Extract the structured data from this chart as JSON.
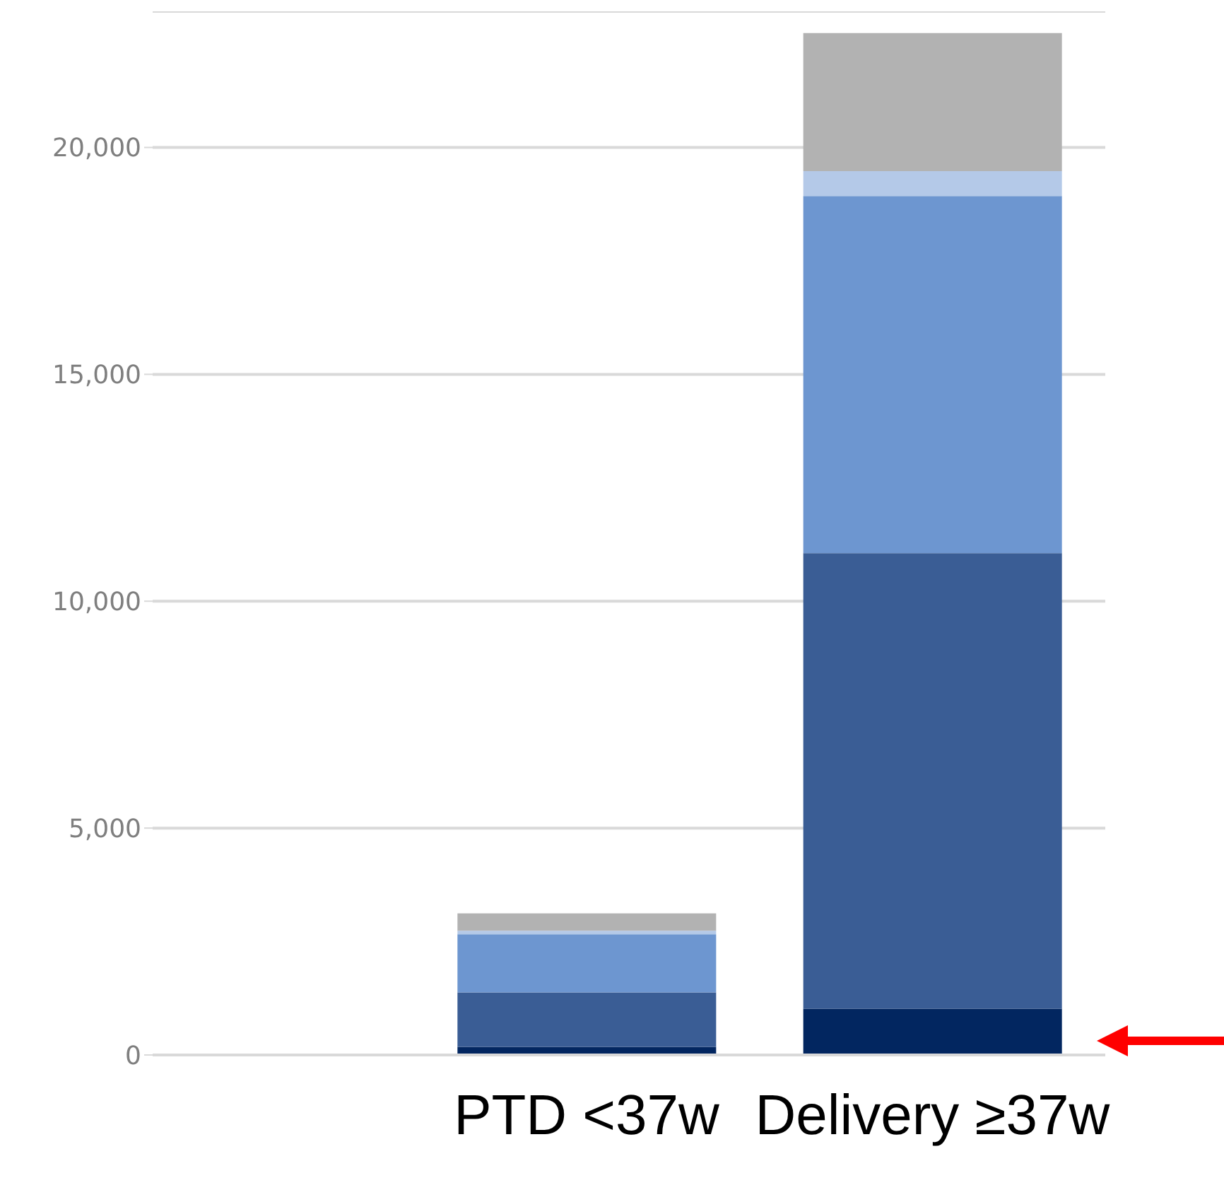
{
  "chart_data": {
    "type": "bar",
    "stacked": true,
    "categories": [
      null,
      "PTD <37w",
      "Delivery ≥37w"
    ],
    "series": [
      {
        "color": "#022660",
        "values": [
          null,
          180,
          1020
        ]
      },
      {
        "color": "#3a5d95",
        "values": [
          null,
          1200,
          10040
        ]
      },
      {
        "color": "#6d96d0",
        "values": [
          null,
          1280,
          7870
        ]
      },
      {
        "color": "#b4c9e8",
        "values": [
          null,
          80,
          550
        ]
      },
      {
        "color": "#b2b2b2",
        "values": [
          null,
          380,
          3040
        ]
      }
    ],
    "ylim": [
      0,
      23000
    ],
    "yticks": [
      {
        "value": 0,
        "label": "0"
      },
      {
        "value": 5000,
        "label": "5,000"
      },
      {
        "value": 10000,
        "label": "10,000"
      },
      {
        "value": 15000,
        "label": "15,000"
      },
      {
        "value": 20000,
        "label": "20,000"
      }
    ],
    "grid": "y",
    "legend": false
  }
}
